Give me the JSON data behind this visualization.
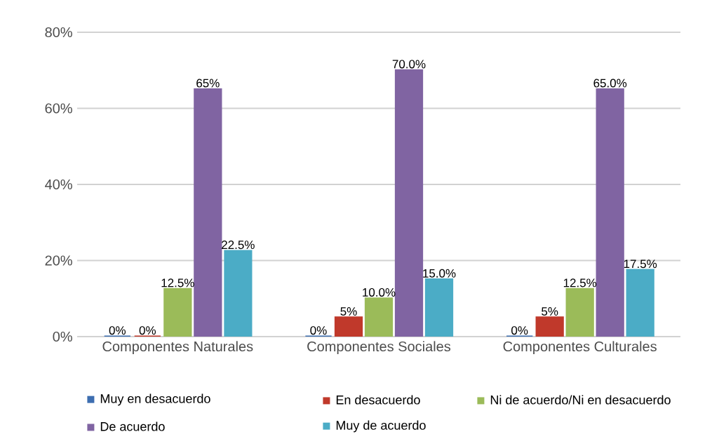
{
  "chart_data": {
    "type": "bar",
    "categories": [
      "Componentes Naturales",
      "Componentes Sociales",
      "Componentes Culturales"
    ],
    "series": [
      {
        "name": "Muy en desacuerdo",
        "color": "#3d6eb0",
        "values": [
          0,
          0,
          0
        ],
        "value_labels": [
          "0%",
          "0%",
          "0%"
        ]
      },
      {
        "name": "En desacuerdo",
        "color": "#c0392b",
        "values": [
          0,
          5,
          5
        ],
        "value_labels": [
          "0%",
          "5%",
          "5%"
        ]
      },
      {
        "name": "Ni de acuerdo/Ni en desacuerdo",
        "color": "#9bbb59",
        "values": [
          12.5,
          10,
          12.5
        ],
        "value_labels": [
          "12.5%",
          "10.0%",
          "12.5%"
        ]
      },
      {
        "name": "De acuerdo",
        "color": "#8064a2",
        "values": [
          65,
          70,
          65
        ],
        "value_labels": [
          "65%",
          "70.0%",
          "65.0%"
        ]
      },
      {
        "name": "Muy de acuerdo",
        "color": "#4bacc6",
        "values": [
          22.5,
          15,
          17.5
        ],
        "value_labels": [
          "22.5%",
          "15.0%",
          "17.5%"
        ]
      }
    ],
    "ylim": [
      0,
      80
    ],
    "yticks": [
      {
        "value": 0,
        "label": "0%"
      },
      {
        "value": 20,
        "label": "20%"
      },
      {
        "value": 40,
        "label": "40%"
      },
      {
        "value": 60,
        "label": "60%"
      },
      {
        "value": 80,
        "label": "80%"
      }
    ],
    "grid": "y",
    "legend": "bottom"
  }
}
